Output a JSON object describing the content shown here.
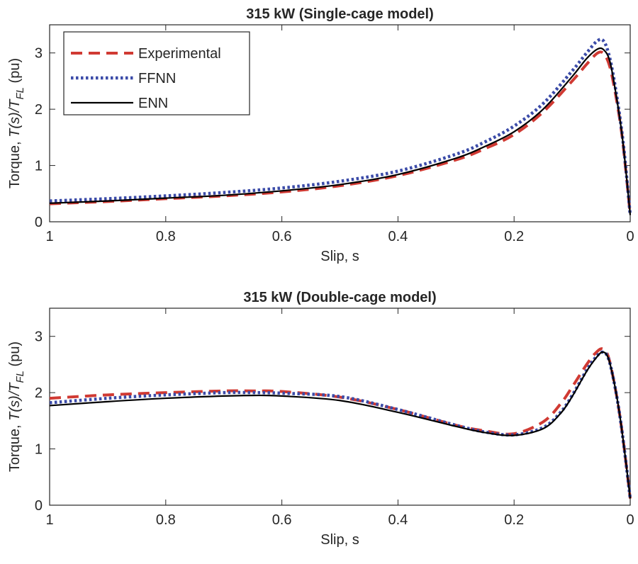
{
  "chart_data": [
    {
      "type": "line",
      "title": "315 kW (Single-cage model)",
      "xlabel": "Slip, s",
      "ylabel_prefix": "Torque, ",
      "ylabel_T": "T(s)/T",
      "ylabel_sub": "FL",
      "ylabel_suffix": " (pu)",
      "xlim": [
        1,
        0
      ],
      "ylim": [
        0,
        3.5
      ],
      "xticks": [
        "1",
        "0.8",
        "0.6",
        "0.4",
        "0.2",
        "0"
      ],
      "yticks": [
        "0",
        "1",
        "2",
        "3"
      ],
      "legend_position": "top-left",
      "x": [
        1,
        0.9,
        0.8,
        0.7,
        0.6,
        0.5,
        0.4,
        0.3,
        0.25,
        0.2,
        0.15,
        0.1,
        0.075,
        0.056,
        0.045,
        0.035,
        0.025,
        0.015,
        0.008,
        0
      ],
      "series": [
        {
          "name": "Experimental",
          "color": "#d03a33",
          "style": "dashed",
          "values": [
            0.32,
            0.36,
            0.41,
            0.46,
            0.53,
            0.64,
            0.82,
            1.1,
            1.3,
            1.55,
            1.95,
            2.5,
            2.8,
            3.0,
            2.98,
            2.75,
            2.25,
            1.6,
            0.95,
            0.12
          ]
        },
        {
          "name": "FFNN",
          "color": "#3b4ba8",
          "style": "dotted",
          "values": [
            0.37,
            0.41,
            0.46,
            0.52,
            0.6,
            0.72,
            0.9,
            1.2,
            1.42,
            1.7,
            2.1,
            2.68,
            3.0,
            3.22,
            3.2,
            2.9,
            2.35,
            1.65,
            1.0,
            0.12
          ]
        },
        {
          "name": "ENN",
          "color": "#000000",
          "style": "solid",
          "values": [
            0.33,
            0.37,
            0.42,
            0.47,
            0.55,
            0.66,
            0.84,
            1.13,
            1.34,
            1.6,
            2.0,
            2.58,
            2.9,
            3.07,
            3.05,
            2.85,
            2.3,
            1.62,
            0.97,
            0.12
          ]
        }
      ]
    },
    {
      "type": "line",
      "title": "315 kW (Double-cage model)",
      "xlabel": "Slip, s",
      "ylabel_prefix": "Torque, ",
      "ylabel_T": "T(s)/T",
      "ylabel_sub": "FL",
      "ylabel_suffix": " (pu)",
      "xlim": [
        1,
        0
      ],
      "ylim": [
        0,
        3.5
      ],
      "xticks": [
        "1",
        "0.8",
        "0.6",
        "0.4",
        "0.2",
        "0"
      ],
      "yticks": [
        "0",
        "1",
        "2",
        "3"
      ],
      "x": [
        1,
        0.9,
        0.8,
        0.7,
        0.65,
        0.6,
        0.5,
        0.4,
        0.3,
        0.25,
        0.2,
        0.15,
        0.12,
        0.1,
        0.075,
        0.06,
        0.048,
        0.038,
        0.028,
        0.018,
        0.009,
        0
      ],
      "series": [
        {
          "name": "Experimental",
          "color": "#d03a33",
          "style": "dashed",
          "values": [
            1.9,
            1.96,
            2.0,
            2.03,
            2.03,
            2.02,
            1.92,
            1.7,
            1.42,
            1.32,
            1.27,
            1.48,
            1.8,
            2.1,
            2.5,
            2.7,
            2.78,
            2.65,
            2.2,
            1.6,
            0.9,
            0.12
          ]
        },
        {
          "name": "FFNN",
          "color": "#3b4ba8",
          "style": "dotted",
          "values": [
            1.82,
            1.9,
            1.96,
            2.0,
            2.0,
            1.99,
            1.93,
            1.7,
            1.42,
            1.3,
            1.25,
            1.38,
            1.65,
            1.95,
            2.4,
            2.62,
            2.72,
            2.62,
            2.2,
            1.6,
            0.9,
            0.12
          ]
        },
        {
          "name": "ENN",
          "color": "#000000",
          "style": "solid",
          "values": [
            1.77,
            1.84,
            1.9,
            1.94,
            1.95,
            1.94,
            1.86,
            1.65,
            1.4,
            1.29,
            1.24,
            1.36,
            1.63,
            1.93,
            2.38,
            2.6,
            2.72,
            2.62,
            2.2,
            1.6,
            0.9,
            0.12
          ]
        }
      ]
    }
  ]
}
